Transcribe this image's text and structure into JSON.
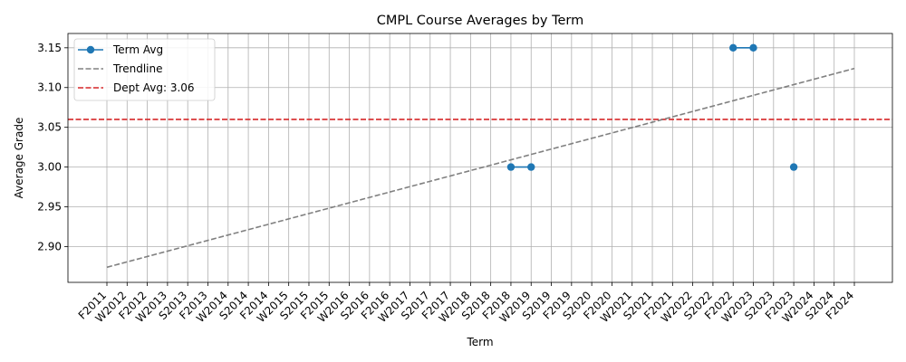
{
  "chart_data": {
    "type": "line",
    "title": "CMPL Course Averages by Term",
    "xlabel": "Term",
    "ylabel": "Average Grade",
    "categories": [
      "F2011",
      "W2012",
      "F2012",
      "W2013",
      "S2013",
      "F2013",
      "W2014",
      "S2014",
      "F2014",
      "W2015",
      "S2015",
      "F2015",
      "W2016",
      "S2016",
      "F2016",
      "W2017",
      "S2017",
      "F2017",
      "W2018",
      "S2018",
      "F2018",
      "W2019",
      "S2019",
      "F2019",
      "S2020",
      "F2020",
      "W2021",
      "S2021",
      "F2021",
      "W2022",
      "S2022",
      "F2022",
      "W2023",
      "S2023",
      "F2023",
      "W2024",
      "S2024",
      "F2024"
    ],
    "ylim": [
      2.855,
      3.168
    ],
    "yticks": [
      "2.90",
      "2.95",
      "3.00",
      "3.05",
      "3.10",
      "3.15"
    ],
    "grid": true,
    "legend_position": "upper-left",
    "series": [
      {
        "name": "Term Avg",
        "kind": "line-markers",
        "color": "#1f77b4",
        "points": [
          {
            "x": "F2018",
            "y": 3.0
          },
          {
            "x": "W2019",
            "y": 3.0
          },
          {
            "x": "F2022",
            "y": 3.15
          },
          {
            "x": "W2023",
            "y": 3.15
          },
          {
            "x": "F2023",
            "y": 3.0
          }
        ]
      },
      {
        "name": "Trendline",
        "kind": "dashed-line",
        "color": "#808080",
        "start": {
          "x": "F2011",
          "y": 2.874
        },
        "end": {
          "x": "F2024",
          "y": 3.124
        }
      },
      {
        "name": "Dept Avg: 3.06",
        "kind": "horizontal-reference",
        "color": "#d62728",
        "y": 3.06
      }
    ]
  }
}
